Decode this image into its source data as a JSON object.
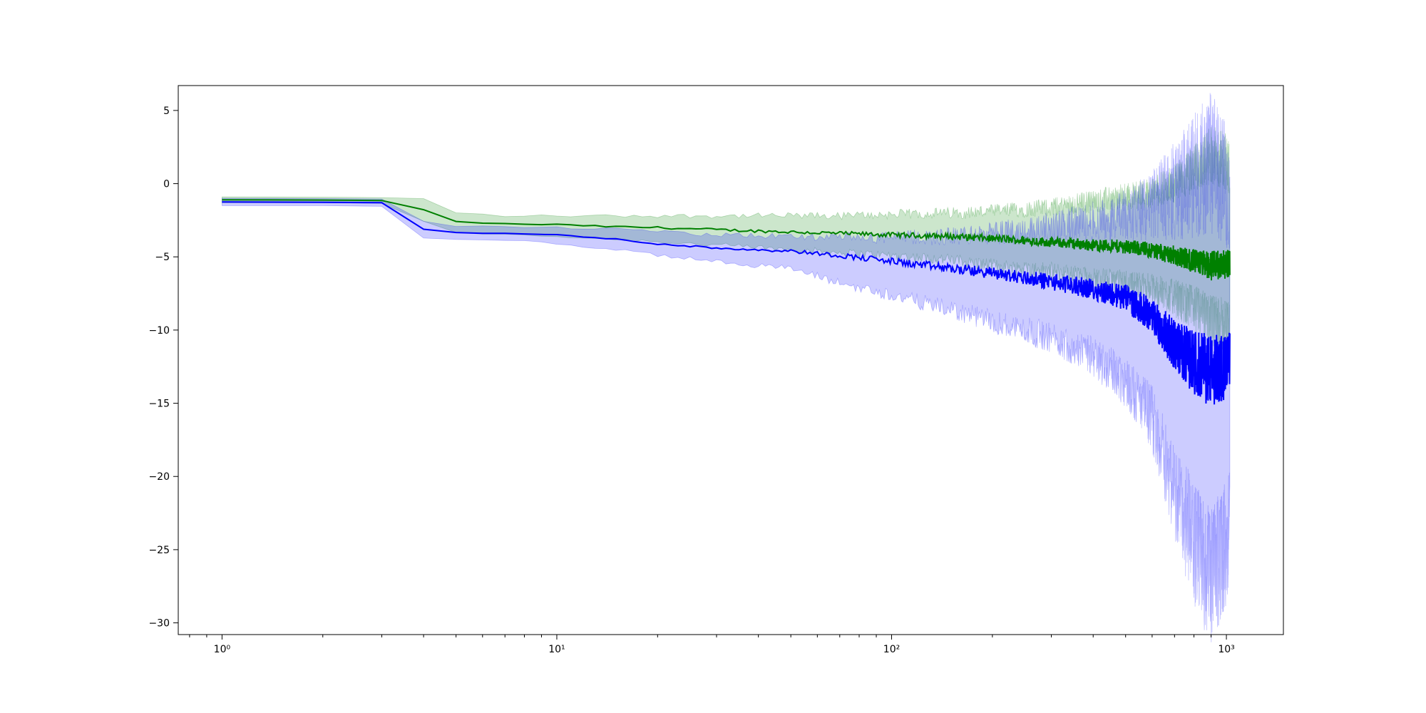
{
  "chart_data": {
    "type": "line",
    "title": "",
    "xlabel": "",
    "ylabel": "",
    "x_scale": "log",
    "xlim": [
      0.74,
      1480
    ],
    "ylim": [
      -30.8,
      6.7
    ],
    "grid": false,
    "legend": "none",
    "x_ticks": [
      {
        "value": 1,
        "label": "10⁰"
      },
      {
        "value": 10,
        "label": "10¹"
      },
      {
        "value": 100,
        "label": "10²"
      },
      {
        "value": 1000,
        "label": "10³"
      }
    ],
    "y_ticks": [
      {
        "value": 5,
        "label": "5"
      },
      {
        "value": 0,
        "label": "0"
      },
      {
        "value": -5,
        "label": "−5"
      },
      {
        "value": -10,
        "label": "−10"
      },
      {
        "value": -15,
        "label": "−15"
      },
      {
        "value": -20,
        "label": "−20"
      },
      {
        "value": -25,
        "label": "−25"
      },
      {
        "value": -30,
        "label": "−30"
      }
    ],
    "series": [
      {
        "color": "#008000",
        "band_color": "#008000",
        "x": [
          1,
          2,
          3,
          4,
          5,
          7,
          10,
          15,
          20,
          30,
          50,
          70,
          100,
          150,
          200,
          300,
          400,
          500,
          600,
          700,
          800,
          900,
          1000,
          1024
        ],
        "mean": [
          -1.1,
          -1.12,
          -1.15,
          -1.8,
          -2.6,
          -2.75,
          -2.8,
          -2.95,
          -3.0,
          -3.15,
          -3.3,
          -3.4,
          -3.5,
          -3.6,
          -3.75,
          -4.0,
          -4.2,
          -4.3,
          -4.55,
          -4.9,
          -5.3,
          -5.6,
          -5.5,
          -5.3
        ],
        "lower": [
          -1.3,
          -1.3,
          -1.35,
          -2.6,
          -3.3,
          -3.5,
          -3.6,
          -3.8,
          -3.95,
          -4.2,
          -4.5,
          -4.7,
          -4.9,
          -5.2,
          -5.6,
          -6.0,
          -6.5,
          -6.8,
          -7.2,
          -7.8,
          -8.5,
          -9.5,
          -9.8,
          -9.8
        ],
        "upper": [
          -0.9,
          -0.92,
          -0.95,
          -1.0,
          -2.0,
          -2.2,
          -2.2,
          -2.2,
          -2.2,
          -2.2,
          -2.2,
          -2.2,
          -2.1,
          -2.0,
          -1.9,
          -1.6,
          -1.2,
          -0.9,
          -0.6,
          0.0,
          1.0,
          2.0,
          1.5,
          1.0
        ]
      },
      {
        "color": "#0000ff",
        "band_color": "#0000ff",
        "x": [
          1,
          2,
          3,
          4,
          5,
          7,
          10,
          15,
          20,
          30,
          50,
          70,
          100,
          150,
          200,
          300,
          400,
          500,
          600,
          700,
          800,
          900,
          1000,
          1024
        ],
        "mean": [
          -1.25,
          -1.27,
          -1.3,
          -3.1,
          -3.35,
          -3.4,
          -3.5,
          -3.8,
          -4.1,
          -4.4,
          -4.6,
          -4.9,
          -5.3,
          -5.8,
          -6.1,
          -6.7,
          -7.2,
          -7.8,
          -9.0,
          -11.0,
          -12.2,
          -12.8,
          -12.5,
          -12.0
        ],
        "lower": [
          -1.5,
          -1.5,
          -1.55,
          -3.7,
          -3.8,
          -3.85,
          -4.1,
          -4.5,
          -4.9,
          -5.3,
          -5.8,
          -6.8,
          -7.6,
          -8.6,
          -9.4,
          -10.5,
          -11.8,
          -13.5,
          -16.0,
          -21.0,
          -24.5,
          -27.0,
          -24.5,
          -23.0
        ],
        "upper": [
          -1.0,
          -1.02,
          -1.05,
          -2.6,
          -2.9,
          -2.95,
          -3.0,
          -3.1,
          -3.3,
          -3.5,
          -3.6,
          -3.7,
          -3.7,
          -3.6,
          -3.4,
          -3.0,
          -2.6,
          -2.2,
          -1.5,
          -0.5,
          0.5,
          1.5,
          0.0,
          -2.0
        ]
      }
    ]
  }
}
